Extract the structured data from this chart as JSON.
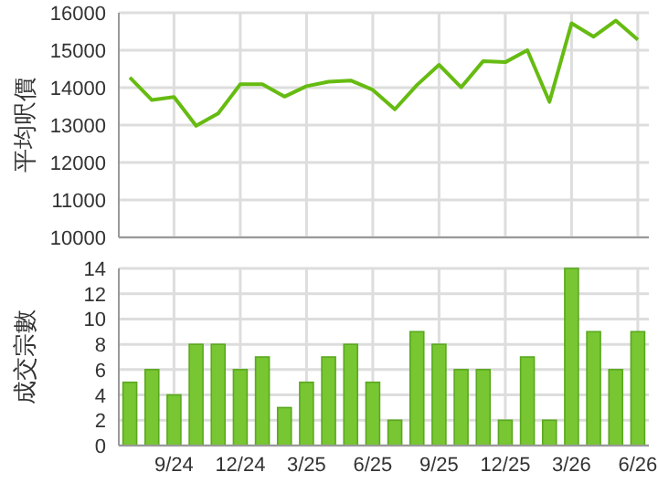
{
  "chart_data": [
    {
      "type": "line",
      "ylabel": "平均呎價",
      "categories": [
        null,
        null,
        null,
        null,
        null,
        null,
        null,
        null,
        null,
        null,
        null,
        null,
        null,
        null,
        null,
        null,
        null,
        null,
        null,
        null,
        null,
        null,
        null,
        null
      ],
      "series": [
        {
          "color": "#66bb11",
          "values": [
            14270,
            13670,
            13750,
            12980,
            13310,
            14090,
            14090,
            13760,
            14040,
            14160,
            14190,
            13940,
            13420,
            14070,
            14610,
            14010,
            14710,
            14680,
            15000,
            13620,
            15720,
            15360,
            15790,
            15280
          ]
        }
      ],
      "ylim": [
        10000,
        16000
      ],
      "yticks": [
        10000,
        11000,
        12000,
        13000,
        14000,
        15000,
        16000
      ],
      "grid": true,
      "tick_labels": "y"
    },
    {
      "type": "bar",
      "ylabel": "成交宗數",
      "categories": [
        null,
        null,
        "9/24",
        null,
        null,
        "12/24",
        null,
        null,
        "3/25",
        null,
        null,
        "6/25",
        null,
        null,
        "9/25",
        null,
        null,
        "12/25",
        null,
        null,
        "3/26",
        null,
        null,
        "6/26"
      ],
      "series": [
        {
          "color": "#77c632",
          "values": [
            5,
            6,
            4,
            8,
            8,
            6,
            7,
            3,
            5,
            7,
            8,
            5,
            2,
            9,
            8,
            6,
            6,
            2,
            7,
            2,
            14,
            9,
            6,
            9
          ]
        }
      ],
      "ylim": [
        0,
        14
      ],
      "yticks": [
        0,
        2,
        4,
        6,
        8,
        10,
        12,
        14
      ],
      "grid": true
    }
  ]
}
